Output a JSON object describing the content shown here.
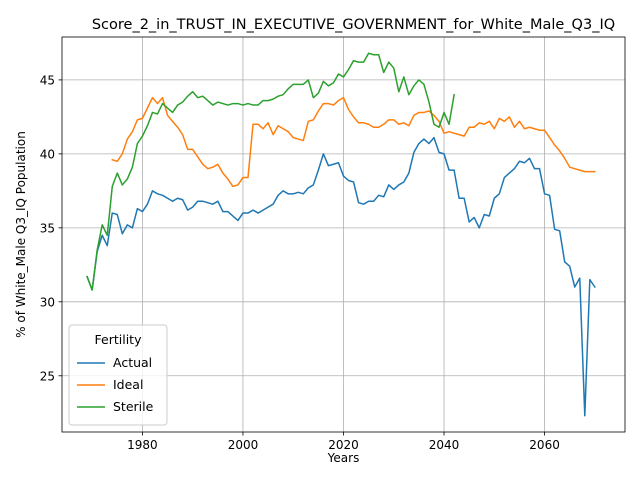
{
  "chart_data": {
    "type": "line",
    "title": "Score_2_in_TRUST_IN_EXECUTIVE_GOVERNMENT_for_White_Male_Q3_IQ",
    "xlabel": "Years",
    "ylabel": "% of White_Male Q3_IQ Population",
    "xlim": [
      1964,
      2076
    ],
    "ylim": [
      21.2,
      47.9
    ],
    "x_ticks": [
      1980,
      2000,
      2020,
      2040,
      2060
    ],
    "y_ticks": [
      25,
      30,
      35,
      40,
      45
    ],
    "grid": true,
    "legend": {
      "title": "Fertility",
      "placement": "lower-left"
    },
    "series": [
      {
        "name": "Actual",
        "color": "#1f77b4",
        "x": [
          1969,
          1970,
          1971,
          1972,
          1973,
          1974,
          1975,
          1976,
          1977,
          1978,
          1979,
          1980,
          1981,
          1982,
          1983,
          1984,
          1985,
          1986,
          1987,
          1988,
          1989,
          1990,
          1991,
          1992,
          1993,
          1994,
          1995,
          1996,
          1997,
          1998,
          1999,
          2000,
          2001,
          2002,
          2003,
          2004,
          2005,
          2006,
          2007,
          2008,
          2009,
          2010,
          2011,
          2012,
          2013,
          2014,
          2015,
          2016,
          2017,
          2018,
          2019,
          2020,
          2021,
          2022,
          2023,
          2024,
          2025,
          2026,
          2027,
          2028,
          2029,
          2030,
          2031,
          2032,
          2033,
          2034,
          2035,
          2036,
          2037,
          2038,
          2039,
          2040,
          2041,
          2042,
          2043,
          2044,
          2045,
          2046,
          2047,
          2048,
          2049,
          2050,
          2051,
          2052,
          2053,
          2054,
          2055,
          2056,
          2057,
          2058,
          2059,
          2060,
          2061,
          2062,
          2063,
          2064,
          2065,
          2066,
          2067,
          2068,
          2069,
          2070
        ],
        "y": [
          31.7,
          30.8,
          33.4,
          34.5,
          33.8,
          36.0,
          35.9,
          34.6,
          35.2,
          35.0,
          36.3,
          36.1,
          36.6,
          37.5,
          37.3,
          37.2,
          37.0,
          36.8,
          37.0,
          36.9,
          36.2,
          36.4,
          36.8,
          36.8,
          36.7,
          36.6,
          36.8,
          36.1,
          36.1,
          35.8,
          35.5,
          36.0,
          36.0,
          36.2,
          36.0,
          36.2,
          36.4,
          36.6,
          37.2,
          37.5,
          37.3,
          37.3,
          37.4,
          37.3,
          37.7,
          37.9,
          38.9,
          40.0,
          39.2,
          39.3,
          39.4,
          38.5,
          38.2,
          38.1,
          36.7,
          36.6,
          36.8,
          36.8,
          37.2,
          37.1,
          37.9,
          37.6,
          37.9,
          38.1,
          38.7,
          40.1,
          40.7,
          41.0,
          40.7,
          41.1,
          40.1,
          40.0,
          38.9,
          38.9,
          37.0,
          37.0,
          35.4,
          35.7,
          35.0,
          35.9,
          35.8,
          37.0,
          37.3,
          38.4,
          38.7,
          39.0,
          39.5,
          39.4,
          39.7,
          39.0,
          39.0,
          37.3,
          37.2,
          34.9,
          34.8,
          32.7,
          32.4,
          31.0,
          31.6,
          22.3,
          31.5,
          31.0
        ]
      },
      {
        "name": "Ideal",
        "color": "#ff7f0e",
        "x": [
          1974,
          1975,
          1976,
          1977,
          1978,
          1979,
          1980,
          1981,
          1982,
          1983,
          1984,
          1985,
          1986,
          1987,
          1988,
          1989,
          1990,
          1991,
          1992,
          1993,
          1994,
          1995,
          1996,
          1997,
          1998,
          1999,
          2000,
          2001,
          2002,
          2003,
          2004,
          2005,
          2006,
          2007,
          2008,
          2009,
          2010,
          2011,
          2012,
          2013,
          2014,
          2015,
          2016,
          2017,
          2018,
          2019,
          2020,
          2021,
          2022,
          2023,
          2024,
          2025,
          2026,
          2027,
          2028,
          2029,
          2030,
          2031,
          2032,
          2033,
          2034,
          2035,
          2036,
          2037,
          2038,
          2039,
          2040,
          2041,
          2042,
          2043,
          2044,
          2045,
          2046,
          2047,
          2048,
          2049,
          2050,
          2051,
          2052,
          2053,
          2054,
          2055,
          2056,
          2057,
          2058,
          2059,
          2060,
          2061,
          2062,
          2063,
          2064,
          2065,
          2066,
          2067,
          2068,
          2069,
          2070
        ],
        "y": [
          39.6,
          39.5,
          40.0,
          41.0,
          41.5,
          42.3,
          42.4,
          43.1,
          43.8,
          43.4,
          43.8,
          42.6,
          42.2,
          41.8,
          41.3,
          40.3,
          40.3,
          39.8,
          39.3,
          39.0,
          39.1,
          39.3,
          38.7,
          38.3,
          37.8,
          37.9,
          38.4,
          38.4,
          42.0,
          42.0,
          41.7,
          42.1,
          41.3,
          41.9,
          41.7,
          41.5,
          41.1,
          41.0,
          40.9,
          42.2,
          42.3,
          42.9,
          43.4,
          43.4,
          43.3,
          43.6,
          43.8,
          43.0,
          42.5,
          42.1,
          42.1,
          42.0,
          41.8,
          41.8,
          42.0,
          42.3,
          42.3,
          42.0,
          42.1,
          41.9,
          42.6,
          42.8,
          42.8,
          42.9,
          42.6,
          42.2,
          41.4,
          41.5,
          41.4,
          41.3,
          41.2,
          41.8,
          41.8,
          42.1,
          42.0,
          42.2,
          41.7,
          42.4,
          42.2,
          42.5,
          41.8,
          42.2,
          41.7,
          41.8,
          41.7,
          41.6,
          41.6,
          41.1,
          40.6,
          40.2,
          39.7,
          39.1,
          39.0,
          38.9,
          38.8,
          38.8,
          38.8
        ]
      },
      {
        "name": "Sterile",
        "color": "#2ca02c",
        "x": [
          1969,
          1970,
          1971,
          1972,
          1973,
          1974,
          1975,
          1976,
          1977,
          1978,
          1979,
          1980,
          1981,
          1982,
          1983,
          1984,
          1985,
          1986,
          1987,
          1988,
          1989,
          1990,
          1991,
          1992,
          1993,
          1994,
          1995,
          1996,
          1997,
          1998,
          1999,
          2000,
          2001,
          2002,
          2003,
          2004,
          2005,
          2006,
          2007,
          2008,
          2009,
          2010,
          2011,
          2012,
          2013,
          2014,
          2015,
          2016,
          2017,
          2018,
          2019,
          2020,
          2021,
          2022,
          2023,
          2024,
          2025,
          2026,
          2027,
          2028,
          2029,
          2030,
          2031,
          2032,
          2033,
          2034,
          2035,
          2036,
          2037,
          2038,
          2039,
          2040,
          2041,
          2042
        ],
        "y": [
          31.7,
          30.8,
          33.5,
          35.2,
          34.5,
          37.8,
          38.7,
          37.9,
          38.3,
          39.1,
          40.7,
          41.2,
          41.9,
          42.8,
          42.7,
          43.4,
          43.1,
          42.8,
          43.3,
          43.5,
          43.9,
          44.2,
          43.8,
          43.9,
          43.6,
          43.3,
          43.5,
          43.4,
          43.3,
          43.4,
          43.4,
          43.3,
          43.4,
          43.3,
          43.3,
          43.6,
          43.6,
          43.7,
          43.9,
          44.0,
          44.4,
          44.7,
          44.7,
          44.7,
          45.0,
          43.8,
          44.1,
          44.9,
          44.6,
          44.8,
          45.4,
          45.2,
          45.7,
          46.3,
          46.2,
          46.2,
          46.8,
          46.7,
          46.7,
          45.5,
          46.2,
          45.8,
          44.2,
          45.2,
          44.0,
          44.6,
          45.0,
          44.7,
          43.5,
          42.0,
          41.8,
          42.8,
          42.0,
          44.0
        ]
      }
    ]
  }
}
